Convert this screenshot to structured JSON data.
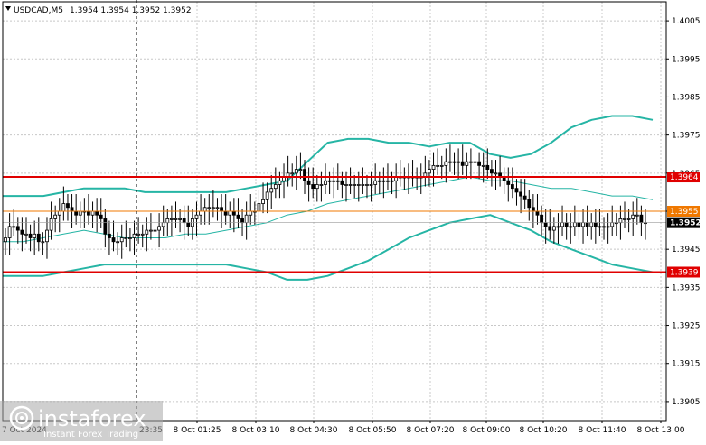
{
  "header": {
    "symbol": "USDCAD,M5",
    "quote": "1.3954 1.3954 1.3952 1.3952"
  },
  "colors": {
    "background": "#ffffff",
    "grid": "#c8c8c8",
    "bollinger": "#26b5a5",
    "ma_line": "#26b5a5",
    "level_red": "#e00000",
    "level_orange": "#f07800",
    "price_tag": "#000000",
    "candle": "#000000"
  },
  "logo": {
    "brand": "instaforex",
    "tagline": "Instant Forex Trading",
    "icon": "instaforex-logo-icon"
  },
  "chart_data": {
    "type": "candlestick",
    "symbol": "USDCAD",
    "timeframe": "M5",
    "ylim": [
      1.39,
      1.401
    ],
    "y_ticks": [
      "1.4005",
      "1.3995",
      "1.3985",
      "1.3975",
      "1.3965",
      "1.3955",
      "1.3945",
      "1.3935",
      "1.3925",
      "1.3915",
      "1.3905"
    ],
    "x_ticks": [
      "8 Oct 01:25",
      "8 Oct 03:10",
      "8 Oct 04:30",
      "8 Oct 05:50",
      "8 Oct 07:20",
      "8 Oct 09:00",
      "8 Oct 10:20",
      "8 Oct 11:40",
      "8 Oct 13:00"
    ],
    "x_ticks_partial": [
      "7 Oct 2024",
      "23:35"
    ],
    "levels": [
      {
        "name": "resistance",
        "value": "1.3964",
        "color": "#e00000"
      },
      {
        "name": "pivot",
        "value": "1.3955",
        "color": "#f07800"
      },
      {
        "name": "support",
        "value": "1.3939",
        "color": "#e00000"
      }
    ],
    "current_price": "1.3952",
    "closes": [
      1.3948,
      1.3951,
      1.3951,
      1.395,
      1.3949,
      1.3949,
      1.3948,
      1.3949,
      1.3947,
      1.3947,
      1.395,
      1.3953,
      1.3954,
      1.3955,
      1.3957,
      1.3956,
      1.3955,
      1.3954,
      1.3955,
      1.3955,
      1.3954,
      1.3955,
      1.3954,
      1.3953,
      1.3949,
      1.3948,
      1.3947,
      1.3947,
      1.3948,
      1.3948,
      1.3948,
      1.3949,
      1.3949,
      1.3949,
      1.395,
      1.395,
      1.395,
      1.3951,
      1.3952,
      1.3953,
      1.3953,
      1.3953,
      1.3953,
      1.3952,
      1.3951,
      1.3953,
      1.3954,
      1.3955,
      1.3956,
      1.3956,
      1.3956,
      1.3956,
      1.3955,
      1.3954,
      1.3955,
      1.3954,
      1.3953,
      1.3952,
      1.3954,
      1.3955,
      1.3955,
      1.3957,
      1.3958,
      1.396,
      1.3961,
      1.3962,
      1.3963,
      1.3964,
      1.3965,
      1.3965,
      1.3966,
      1.3966,
      1.3963,
      1.3962,
      1.3961,
      1.3962,
      1.3962,
      1.3963,
      1.3963,
      1.3963,
      1.3963,
      1.3962,
      1.3962,
      1.3962,
      1.3962,
      1.3962,
      1.3962,
      1.3962,
      1.3962,
      1.3963,
      1.3963,
      1.3963,
      1.3963,
      1.3963,
      1.3964,
      1.3964,
      1.3964,
      1.3964,
      1.3964,
      1.3964,
      1.3964,
      1.3965,
      1.3966,
      1.3967,
      1.3967,
      1.3967,
      1.3968,
      1.3968,
      1.3968,
      1.3968,
      1.3967,
      1.3968,
      1.3968,
      1.3968,
      1.3967,
      1.3967,
      1.3966,
      1.3965,
      1.3965,
      1.3964,
      1.3963,
      1.3962,
      1.3961,
      1.396,
      1.3959,
      1.3958,
      1.3956,
      1.3955,
      1.3954,
      1.3952,
      1.3951,
      1.395,
      1.3951,
      1.3951,
      1.3952,
      1.3951,
      1.3951,
      1.3952,
      1.3951,
      1.3952,
      1.3951,
      1.3952,
      1.3951,
      1.3951,
      1.3951,
      1.3951,
      1.3952,
      1.3952,
      1.3953,
      1.3953,
      1.3953,
      1.3954,
      1.3954,
      1.3952,
      1.3952
    ],
    "bb_upper": [
      1.3959,
      1.3959,
      1.3959,
      1.396,
      1.3961,
      1.3961,
      1.3961,
      1.396,
      1.396,
      1.396,
      1.396,
      1.396,
      1.3961,
      1.3962,
      1.3963,
      1.3968,
      1.3973,
      1.3974,
      1.3974,
      1.3973,
      1.3973,
      1.3972,
      1.3973,
      1.3973,
      1.397,
      1.3969,
      1.397,
      1.3973,
      1.3977,
      1.3979,
      1.398,
      1.398,
      1.3979
    ],
    "bb_mid": [
      1.3947,
      1.3947,
      1.3948,
      1.3949,
      1.395,
      1.3949,
      1.3948,
      1.3948,
      1.3948,
      1.3949,
      1.3949,
      1.395,
      1.3951,
      1.3952,
      1.3954,
      1.3955,
      1.3957,
      1.3958,
      1.3959,
      1.396,
      1.3961,
      1.3962,
      1.3963,
      1.3964,
      1.3963,
      1.3963,
      1.3962,
      1.3961,
      1.3961,
      1.396,
      1.3959,
      1.3959,
      1.3958
    ],
    "bb_lower": [
      1.3938,
      1.3938,
      1.3938,
      1.3939,
      1.394,
      1.3941,
      1.3941,
      1.3941,
      1.3941,
      1.3941,
      1.3941,
      1.3941,
      1.394,
      1.3939,
      1.3937,
      1.3937,
      1.3938,
      1.394,
      1.3942,
      1.3945,
      1.3948,
      1.395,
      1.3952,
      1.3953,
      1.3954,
      1.3952,
      1.395,
      1.3947,
      1.3945,
      1.3943,
      1.3941,
      1.394,
      1.3939
    ]
  }
}
